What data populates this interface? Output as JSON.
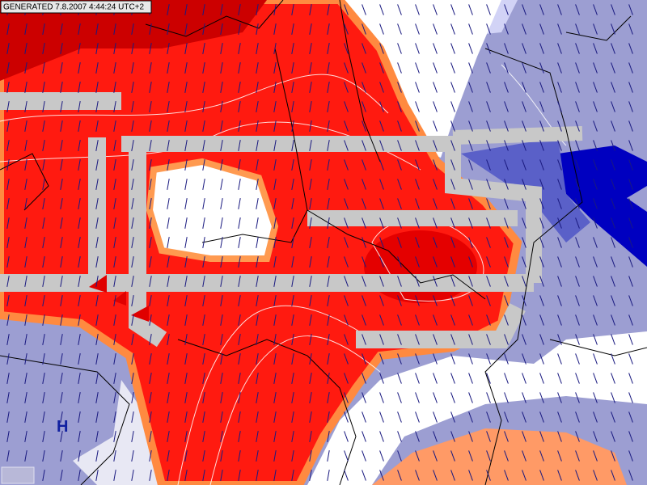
{
  "header": {
    "generated": "GENERATED 7.8.2007 4:44:24 UTC+2"
  },
  "labels": {
    "high": "H"
  }
}
